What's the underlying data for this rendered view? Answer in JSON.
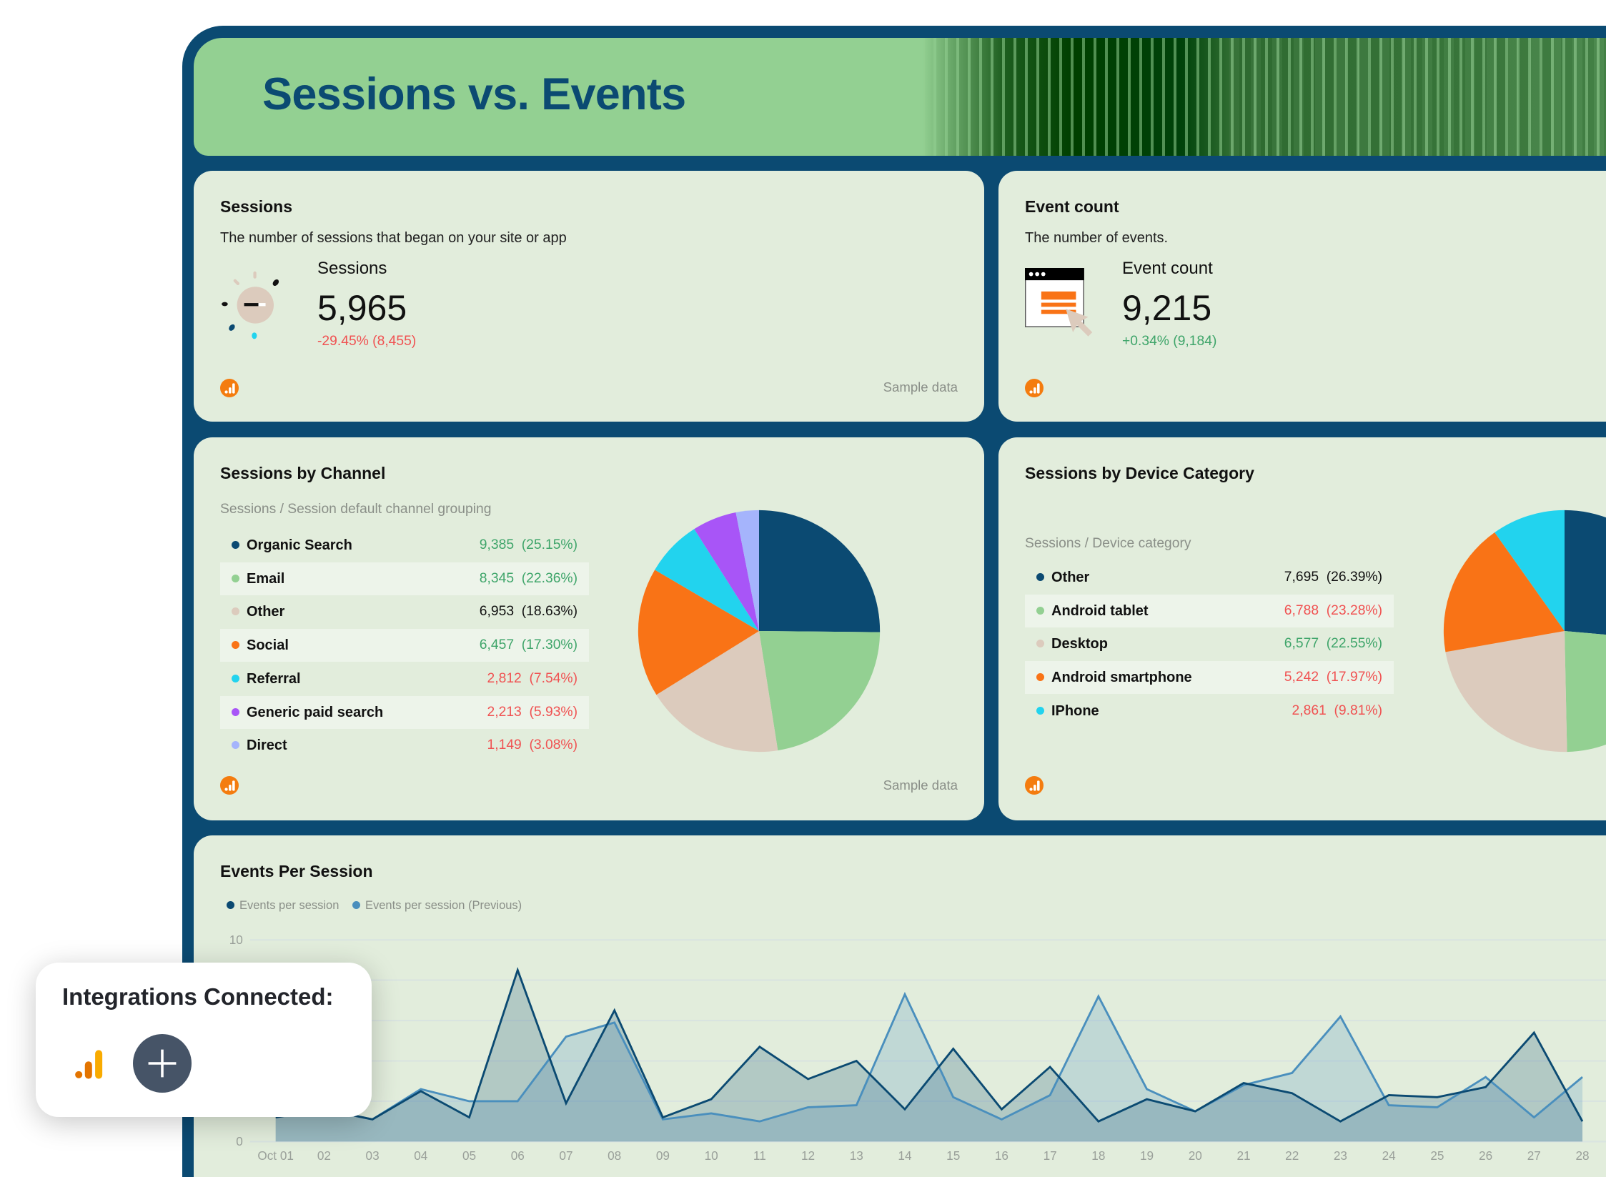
{
  "header": {
    "title": "Sessions vs. Events"
  },
  "colors": {
    "frame": "#0b4a72",
    "card": "#e2eddc",
    "positive": "#3fa56a",
    "negative": "#f05252",
    "neutral": "#111111",
    "darkblue": "#0b4a72",
    "green": "#93d092",
    "beige": "#dccbbd",
    "orange": "#f97316",
    "cyan": "#22d3ee",
    "purple": "#a855f7",
    "lavender": "#a5b4fc"
  },
  "sessions_card": {
    "title": "Sessions",
    "description": "The number of sessions that began on your site or app",
    "kpi_label": "Sessions",
    "value": "5,965",
    "delta": "-29.45% (8,455)",
    "delta_trend": "negative",
    "icon": "loading-spinner-icon",
    "footer": "Sample data"
  },
  "events_card": {
    "title": "Event count",
    "description": "The number of events.",
    "kpi_label": "Event count",
    "value": "9,215",
    "delta": "+0.34% (9,184)",
    "delta_trend": "positive",
    "icon": "browser-click-icon"
  },
  "channel_card": {
    "title": "Sessions by Channel",
    "subtitle": "Sessions / Session default channel grouping",
    "footer": "Sample data",
    "rows": [
      {
        "label": "Organic Search",
        "value": "9,385  (25.15%)",
        "share": 25.15,
        "color": "#0b4a72",
        "trend": "positive"
      },
      {
        "label": "Email",
        "value": "8,345  (22.36%)",
        "share": 22.36,
        "color": "#93d092",
        "trend": "positive"
      },
      {
        "label": "Other",
        "value": "6,953  (18.63%)",
        "share": 18.63,
        "color": "#dccbbd",
        "trend": "neutral"
      },
      {
        "label": "Social",
        "value": "6,457  (17.30%)",
        "share": 17.3,
        "color": "#f97316",
        "trend": "positive"
      },
      {
        "label": "Referral",
        "value": "2,812  (7.54%)",
        "share": 7.54,
        "color": "#22d3ee",
        "trend": "negative"
      },
      {
        "label": "Generic paid search",
        "value": "2,213  (5.93%)",
        "share": 5.93,
        "color": "#a855f7",
        "trend": "negative"
      },
      {
        "label": "Direct",
        "value": "1,149  (3.08%)",
        "share": 3.08,
        "color": "#a5b4fc",
        "trend": "negative"
      }
    ]
  },
  "device_card": {
    "title": "Sessions by Device Category",
    "subtitle": "Sessions / Device category",
    "rows": [
      {
        "label": "Other",
        "value": "7,695  (26.39%)",
        "share": 26.39,
        "color": "#0b4a72",
        "trend": "neutral"
      },
      {
        "label": "Android tablet",
        "value": "6,788  (23.28%)",
        "share": 23.28,
        "color": "#93d092",
        "trend": "negative"
      },
      {
        "label": "Desktop",
        "value": "6,577  (22.55%)",
        "share": 22.55,
        "color": "#dccbbd",
        "trend": "positive"
      },
      {
        "label": "Android smartphone",
        "value": "5,242  (17.97%)",
        "share": 17.97,
        "color": "#f97316",
        "trend": "negative"
      },
      {
        "label": "IPhone",
        "value": "2,861  (9.81%)",
        "share": 9.81,
        "color": "#22d3ee",
        "trend": "negative"
      }
    ]
  },
  "chart_data": {
    "type": "area",
    "title": "Events Per Session",
    "legend_position": "top-left",
    "grid": true,
    "ylim": [
      0,
      10
    ],
    "y_tick_labels": [
      "0",
      "10"
    ],
    "x": [
      "Oct 01",
      "02",
      "03",
      "04",
      "05",
      "06",
      "07",
      "08",
      "09",
      "10",
      "11",
      "12",
      "13",
      "14",
      "15",
      "16",
      "17",
      "18",
      "19",
      "20",
      "21",
      "22",
      "23",
      "24",
      "25",
      "26",
      "27",
      "28"
    ],
    "series": [
      {
        "name": "Events per session",
        "color": "#0b4a72",
        "values": [
          1.2,
          1.6,
          1.1,
          2.5,
          1.2,
          8.5,
          1.9,
          6.5,
          1.2,
          2.1,
          4.7,
          3.1,
          4.0,
          1.6,
          4.6,
          1.6,
          3.7,
          1.0,
          2.1,
          1.5,
          2.9,
          2.4,
          1.0,
          2.3,
          2.2,
          2.7,
          5.4,
          1.0
        ]
      },
      {
        "name": "Events per session (Previous)",
        "color": "#4a8fbd",
        "values": [
          1.8,
          1.6,
          1.1,
          2.6,
          2.0,
          2.0,
          5.2,
          5.9,
          1.1,
          1.4,
          1.0,
          1.7,
          1.8,
          7.3,
          2.2,
          1.1,
          2.3,
          7.2,
          2.6,
          1.5,
          2.8,
          3.4,
          6.2,
          1.8,
          1.7,
          3.2,
          1.2,
          3.2
        ]
      }
    ]
  },
  "popup": {
    "title": "Integrations Connected:",
    "integrations": [
      "google-analytics-icon"
    ],
    "add_label": "+"
  }
}
